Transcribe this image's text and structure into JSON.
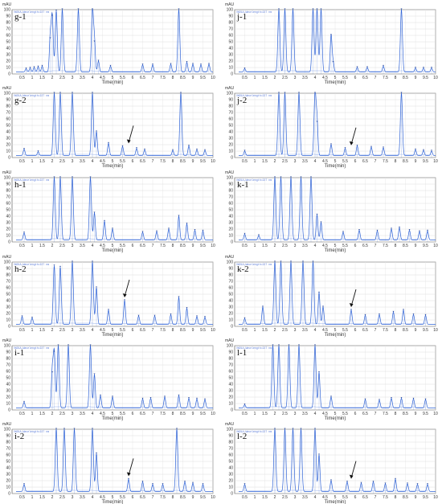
{
  "figure": {
    "unit_label": "mAU",
    "x_axis_label": "Time(min)",
    "y_ticks": [
      "0",
      "10",
      "20",
      "30",
      "40",
      "50",
      "60",
      "70",
      "80",
      "90",
      "100"
    ],
    "x_ticks": [
      "0.5",
      "1",
      "1.5",
      "2",
      "2.5",
      "3",
      "3.5",
      "4",
      "4.5",
      "5",
      "5.5",
      "6",
      "6.5",
      "7",
      "7.5",
      "8",
      "8.5",
      "9",
      "9.5",
      "10"
    ],
    "channel_header": "VWD1A,Wavelength=227 nm",
    "trace_color": "#2f63d6",
    "arrow_color": "#111111"
  },
  "panels": [
    {
      "label": "g-1",
      "arrow": null
    },
    {
      "label": "j-1",
      "arrow": null
    },
    {
      "label": "g-2",
      "arrow": 5.8
    },
    {
      "label": "j-2",
      "arrow": 5.8
    },
    {
      "label": "h-1",
      "arrow": null
    },
    {
      "label": "k-1",
      "arrow": null
    },
    {
      "label": "h-2",
      "arrow": 5.6
    },
    {
      "label": "k-2",
      "arrow": 5.8
    },
    {
      "label": "i-1",
      "arrow": null
    },
    {
      "label": "l-1",
      "arrow": null
    },
    {
      "label": "i-2",
      "arrow": 5.8
    },
    {
      "label": "l-2",
      "arrow": 5.8
    }
  ],
  "chart_data": [
    {
      "type": "line",
      "title": "g-1",
      "xlabel": "Time(min)",
      "ylabel": "mAU",
      "xlim": [
        0,
        10
      ],
      "ylim": [
        0,
        100
      ],
      "grid": true,
      "series": [
        {
          "peaks": [
            [
              0.7,
              8
            ],
            [
              0.9,
              9
            ],
            [
              1.1,
              10
            ],
            [
              1.3,
              11
            ],
            [
              1.5,
              12
            ],
            [
              1.9,
              55
            ],
            [
              2.0,
              90
            ],
            [
              2.2,
              98
            ],
            [
              2.5,
              100
            ],
            [
              3.3,
              100
            ],
            [
              4.0,
              100
            ],
            [
              4.1,
              50
            ],
            [
              4.3,
              20
            ],
            [
              4.9,
              12
            ],
            [
              6.5,
              14
            ],
            [
              7.0,
              14
            ],
            [
              7.9,
              15
            ],
            [
              8.3,
              100
            ],
            [
              8.7,
              18
            ],
            [
              9.0,
              15
            ],
            [
              9.4,
              14
            ],
            [
              9.8,
              15
            ]
          ]
        }
      ]
    },
    {
      "type": "line",
      "title": "j-1",
      "xlabel": "Time(min)",
      "ylabel": "mAU",
      "xlim": [
        0,
        10
      ],
      "ylim": [
        0,
        100
      ],
      "grid": true,
      "series": [
        {
          "peaks": [
            [
              0.5,
              8
            ],
            [
              2.2,
              100
            ],
            [
              2.5,
              100
            ],
            [
              2.9,
              100
            ],
            [
              3.9,
              100
            ],
            [
              4.1,
              100
            ],
            [
              4.3,
              100
            ],
            [
              4.8,
              60
            ],
            [
              4.9,
              18
            ],
            [
              6.1,
              10
            ],
            [
              6.6,
              10
            ],
            [
              7.4,
              12
            ],
            [
              8.3,
              100
            ],
            [
              9.0,
              9
            ],
            [
              9.4,
              9
            ],
            [
              9.8,
              9
            ]
          ]
        }
      ]
    },
    {
      "type": "line",
      "title": "g-2",
      "xlabel": "Time(min)",
      "ylabel": "mAU",
      "xlim": [
        0,
        10
      ],
      "ylim": [
        0,
        100
      ],
      "grid": true,
      "series": [
        {
          "peaks": [
            [
              0.6,
              13
            ],
            [
              1.3,
              9
            ],
            [
              2.1,
              100
            ],
            [
              2.4,
              100
            ],
            [
              3.0,
              100
            ],
            [
              4.0,
              100
            ],
            [
              4.2,
              40
            ],
            [
              4.8,
              22
            ],
            [
              5.5,
              17
            ],
            [
              6.2,
              14
            ],
            [
              6.6,
              12
            ],
            [
              8.0,
              11
            ],
            [
              8.4,
              100
            ],
            [
              8.8,
              18
            ],
            [
              9.2,
              12
            ],
            [
              9.6,
              11
            ]
          ]
        }
      ]
    },
    {
      "type": "line",
      "title": "j-2",
      "xlabel": "Time(min)",
      "ylabel": "mAU",
      "xlim": [
        0,
        10
      ],
      "ylim": [
        0,
        100
      ],
      "grid": true,
      "series": [
        {
          "peaks": [
            [
              0.5,
              10
            ],
            [
              2.2,
              100
            ],
            [
              2.5,
              100
            ],
            [
              3.2,
              100
            ],
            [
              4.0,
              100
            ],
            [
              4.1,
              55
            ],
            [
              4.8,
              20
            ],
            [
              5.5,
              14
            ],
            [
              6.1,
              18
            ],
            [
              6.8,
              16
            ],
            [
              7.4,
              15
            ],
            [
              8.3,
              100
            ],
            [
              9.0,
              12
            ],
            [
              9.4,
              11
            ],
            [
              9.8,
              10
            ]
          ]
        }
      ]
    },
    {
      "type": "line",
      "title": "h-1",
      "xlabel": "Time(min)",
      "ylabel": "mAU",
      "xlim": [
        0,
        10
      ],
      "ylim": [
        0,
        100
      ],
      "grid": true,
      "series": [
        {
          "peaks": [
            [
              0.6,
              14
            ],
            [
              2.1,
              100
            ],
            [
              2.4,
              100
            ],
            [
              3.0,
              100
            ],
            [
              3.9,
              100
            ],
            [
              4.1,
              45
            ],
            [
              4.6,
              32
            ],
            [
              5.0,
              20
            ],
            [
              6.5,
              15
            ],
            [
              7.2,
              16
            ],
            [
              7.8,
              20
            ],
            [
              8.3,
              40
            ],
            [
              8.7,
              28
            ],
            [
              9.1,
              18
            ],
            [
              9.5,
              17
            ]
          ]
        }
      ]
    },
    {
      "type": "line",
      "title": "k-1",
      "xlabel": "Time(min)",
      "ylabel": "mAU",
      "xlim": [
        0,
        10
      ],
      "ylim": [
        0,
        100
      ],
      "grid": true,
      "series": [
        {
          "peaks": [
            [
              0.5,
              12
            ],
            [
              1.2,
              10
            ],
            [
              2.0,
              100
            ],
            [
              2.3,
              100
            ],
            [
              2.8,
              100
            ],
            [
              3.3,
              100
            ],
            [
              3.8,
              100
            ],
            [
              4.1,
              42
            ],
            [
              4.3,
              30
            ],
            [
              5.4,
              15
            ],
            [
              6.2,
              18
            ],
            [
              7.1,
              17
            ],
            [
              7.8,
              20
            ],
            [
              8.2,
              22
            ],
            [
              8.7,
              18
            ],
            [
              9.2,
              16
            ],
            [
              9.6,
              17
            ]
          ]
        }
      ]
    },
    {
      "type": "line",
      "title": "h-2",
      "xlabel": "Time(min)",
      "ylabel": "mAU",
      "xlim": [
        0,
        10
      ],
      "ylim": [
        0,
        100
      ],
      "grid": true,
      "series": [
        {
          "peaks": [
            [
              0.5,
              15
            ],
            [
              1.0,
              13
            ],
            [
              2.1,
              94
            ],
            [
              2.4,
              92
            ],
            [
              3.0,
              100
            ],
            [
              4.0,
              100
            ],
            [
              4.2,
              60
            ],
            [
              4.8,
              25
            ],
            [
              5.6,
              40
            ],
            [
              6.3,
              16
            ],
            [
              7.1,
              16
            ],
            [
              7.9,
              18
            ],
            [
              8.3,
              45
            ],
            [
              8.7,
              28
            ],
            [
              9.2,
              15
            ],
            [
              9.6,
              14
            ]
          ]
        }
      ]
    },
    {
      "type": "line",
      "title": "k-2",
      "xlabel": "Time(min)",
      "ylabel": "mAU",
      "xlim": [
        0,
        10
      ],
      "ylim": [
        0,
        100
      ],
      "grid": true,
      "series": [
        {
          "peaks": [
            [
              0.5,
              12
            ],
            [
              1.4,
              30
            ],
            [
              2.0,
              100
            ],
            [
              2.3,
              100
            ],
            [
              2.8,
              100
            ],
            [
              3.4,
              100
            ],
            [
              3.9,
              100
            ],
            [
              4.2,
              52
            ],
            [
              4.4,
              30
            ],
            [
              5.8,
              25
            ],
            [
              6.5,
              17
            ],
            [
              7.2,
              18
            ],
            [
              7.9,
              22
            ],
            [
              8.4,
              25
            ],
            [
              8.9,
              18
            ],
            [
              9.5,
              17
            ]
          ]
        }
      ]
    },
    {
      "type": "line",
      "title": "i-1",
      "xlabel": "Time(min)",
      "ylabel": "mAU",
      "xlim": [
        0,
        10
      ],
      "ylim": [
        0,
        100
      ],
      "grid": true,
      "series": [
        {
          "peaks": [
            [
              0.6,
              12
            ],
            [
              2.0,
              58
            ],
            [
              2.1,
              90
            ],
            [
              2.3,
              100
            ],
            [
              2.8,
              100
            ],
            [
              3.9,
              100
            ],
            [
              4.1,
              55
            ],
            [
              4.4,
              22
            ],
            [
              5.0,
              20
            ],
            [
              6.5,
              17
            ],
            [
              6.9,
              18
            ],
            [
              7.6,
              20
            ],
            [
              8.3,
              22
            ],
            [
              8.8,
              18
            ],
            [
              9.2,
              17
            ],
            [
              9.6,
              16
            ]
          ]
        }
      ]
    },
    {
      "type": "line",
      "title": "l-1",
      "xlabel": "Time(min)",
      "ylabel": "mAU",
      "xlim": [
        0,
        10
      ],
      "ylim": [
        0,
        100
      ],
      "grid": true,
      "series": [
        {
          "peaks": [
            [
              0.5,
              8
            ],
            [
              1.9,
              100
            ],
            [
              2.2,
              100
            ],
            [
              2.7,
              100
            ],
            [
              3.2,
              100
            ],
            [
              4.0,
              100
            ],
            [
              4.2,
              58
            ],
            [
              4.8,
              20
            ],
            [
              6.5,
              16
            ],
            [
              7.2,
              15
            ],
            [
              7.8,
              18
            ],
            [
              8.3,
              18
            ],
            [
              8.9,
              17
            ],
            [
              9.5,
              16
            ]
          ]
        }
      ]
    },
    {
      "type": "line",
      "title": "i-2",
      "xlabel": "Time(min)",
      "ylabel": "mAU",
      "xlim": [
        0,
        10
      ],
      "ylim": [
        0,
        100
      ],
      "grid": true,
      "series": [
        {
          "peaks": [
            [
              0.6,
              14
            ],
            [
              2.2,
              100
            ],
            [
              2.6,
              100
            ],
            [
              3.1,
              100
            ],
            [
              4.0,
              100
            ],
            [
              4.2,
              62
            ],
            [
              5.8,
              22
            ],
            [
              6.5,
              18
            ],
            [
              7.0,
              14
            ],
            [
              7.5,
              14
            ],
            [
              8.2,
              100
            ],
            [
              8.6,
              18
            ],
            [
              9.0,
              16
            ],
            [
              9.5,
              14
            ]
          ]
        }
      ]
    },
    {
      "type": "line",
      "title": "l-2",
      "xlabel": "Time(min)",
      "ylabel": "mAU",
      "xlim": [
        0,
        10
      ],
      "ylim": [
        0,
        100
      ],
      "grid": true,
      "series": [
        {
          "peaks": [
            [
              0.5,
              14
            ],
            [
              2.0,
              100
            ],
            [
              2.5,
              100
            ],
            [
              2.9,
              100
            ],
            [
              3.3,
              100
            ],
            [
              4.0,
              100
            ],
            [
              4.2,
              60
            ],
            [
              4.8,
              20
            ],
            [
              5.6,
              18
            ],
            [
              6.3,
              16
            ],
            [
              6.9,
              18
            ],
            [
              7.5,
              15
            ],
            [
              8.0,
              22
            ],
            [
              8.6,
              15
            ],
            [
              9.1,
              14
            ],
            [
              9.6,
              14
            ]
          ]
        }
      ]
    }
  ]
}
